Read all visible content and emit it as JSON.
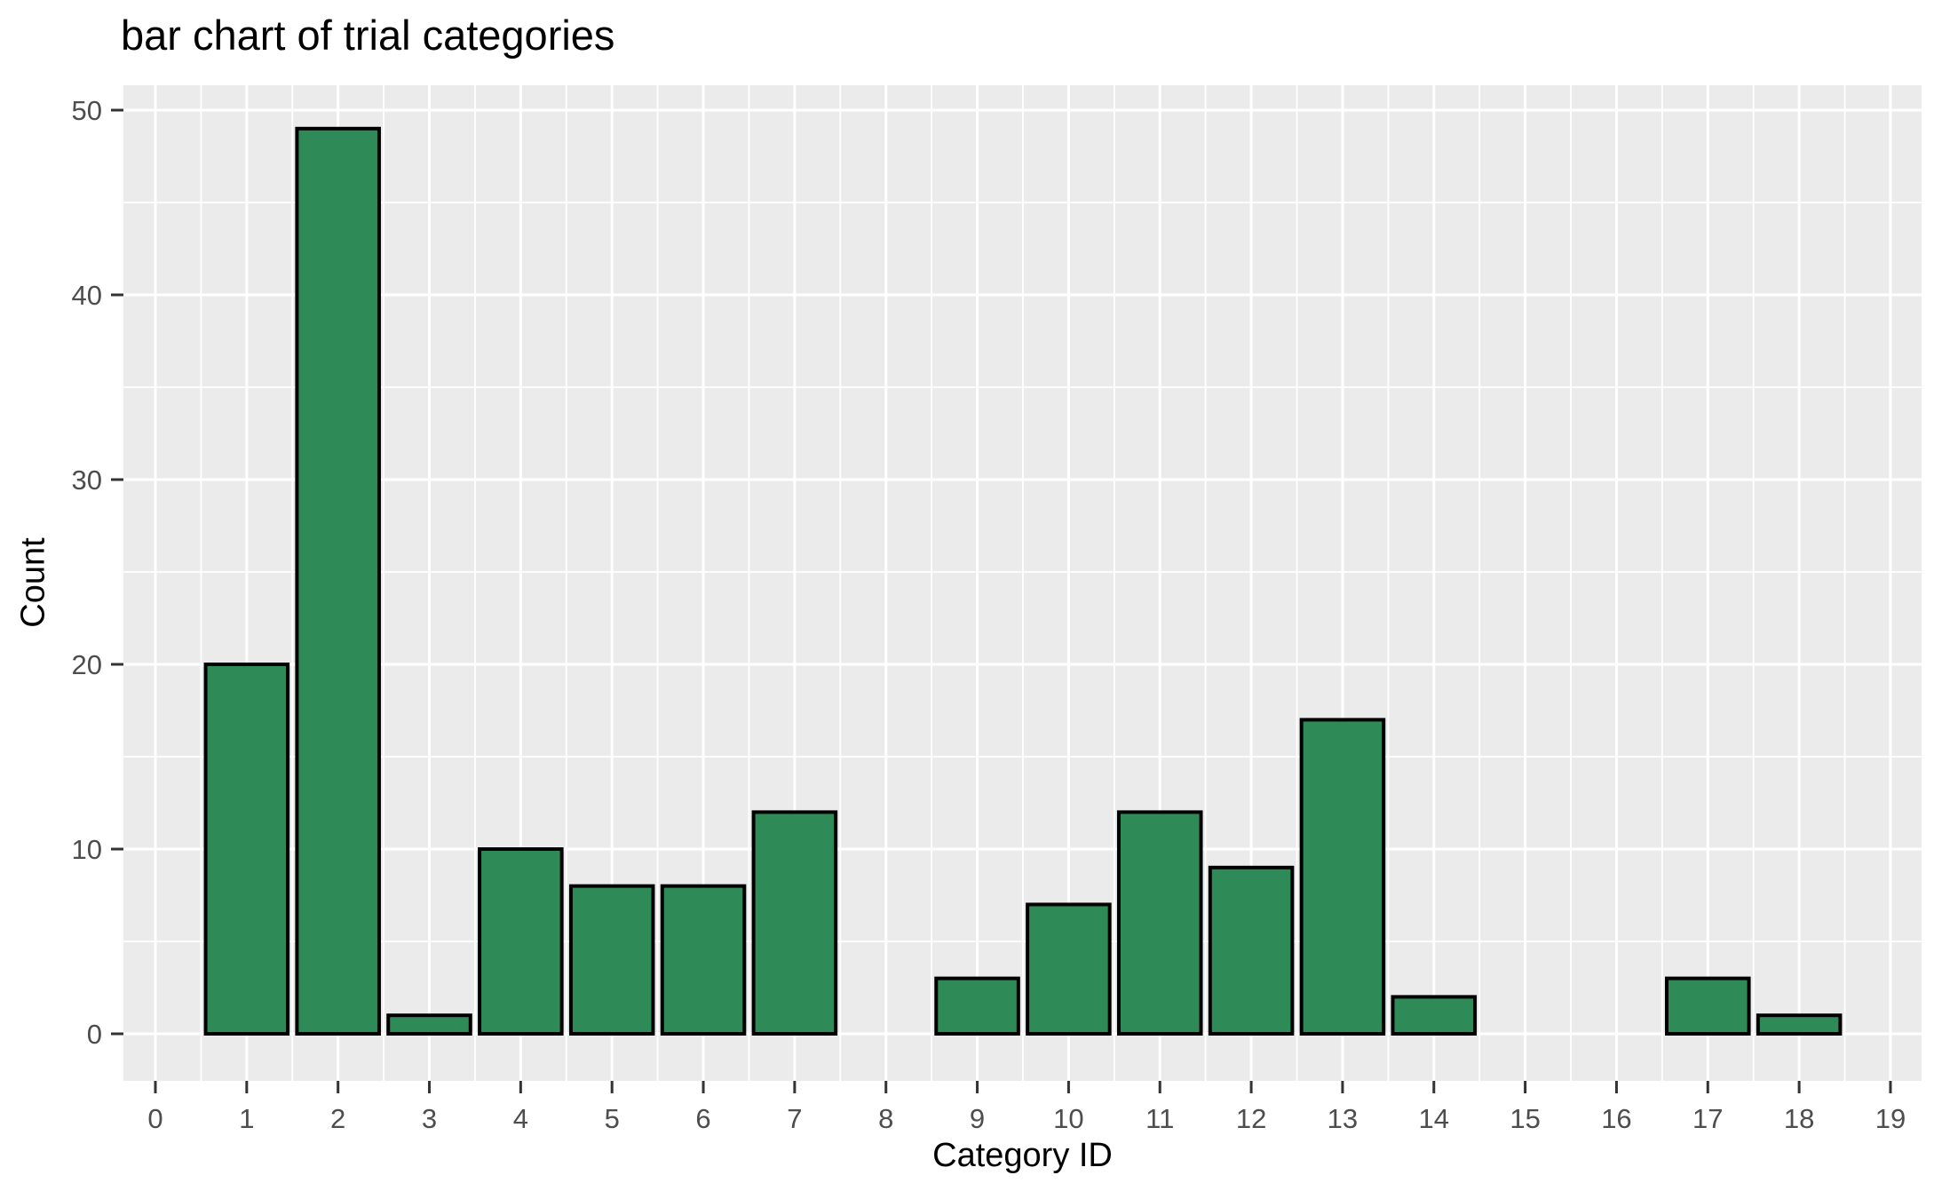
{
  "chart_data": {
    "type": "bar",
    "title": "bar chart of trial categories",
    "xlabel": "Category ID",
    "ylabel": "Count",
    "categories": [
      0,
      1,
      2,
      3,
      4,
      5,
      6,
      7,
      8,
      9,
      10,
      11,
      12,
      13,
      14,
      15,
      16,
      17,
      18,
      19
    ],
    "values": [
      0,
      20,
      49,
      1,
      10,
      8,
      8,
      12,
      0,
      3,
      7,
      12,
      9,
      17,
      2,
      0,
      0,
      3,
      1,
      0
    ],
    "x_ticks": [
      0,
      1,
      2,
      3,
      4,
      5,
      6,
      7,
      8,
      9,
      10,
      11,
      12,
      13,
      14,
      15,
      16,
      17,
      18,
      19
    ],
    "y_ticks": [
      0,
      10,
      20,
      30,
      40,
      50
    ],
    "y_minor_ticks": [
      5,
      15,
      25,
      35,
      45
    ],
    "ylim": [
      0,
      51.5
    ],
    "xlim": [
      -0.35,
      19.35
    ],
    "bar_rel_width": 0.9,
    "grid": "white major and minor gridlines on gray panel",
    "legend": "none",
    "colors": {
      "bar_fill": "#2E8B57",
      "bar_stroke": "#000000",
      "panel_background": "#EBEBEB",
      "gridline": "#FFFFFF",
      "tick_label": "#4D4D4D",
      "tick_mark": "#333333",
      "text": "#000000",
      "figure_background": "#FFFFFF"
    }
  }
}
